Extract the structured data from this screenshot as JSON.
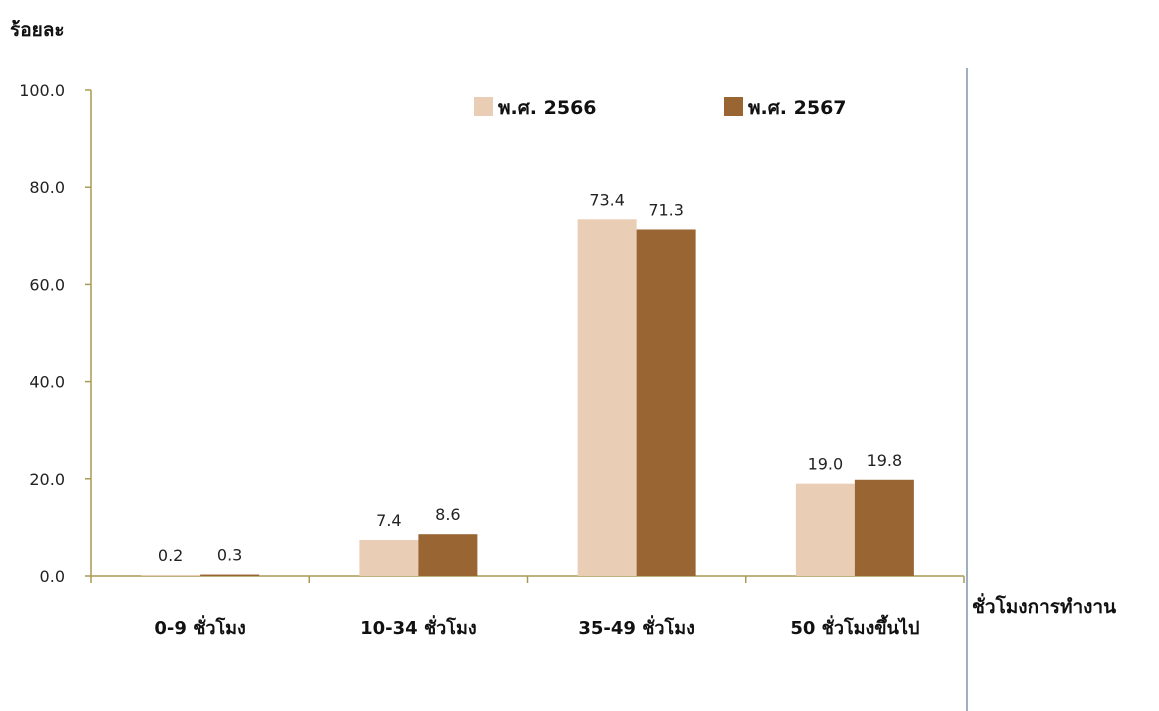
{
  "chart_data": {
    "type": "bar",
    "ylabel": "ร้อยละ",
    "xlabel": "ชั่วโมงการทำงาน",
    "categories": [
      "0-9 ชั่วโมง",
      "10-34 ชั่วโมง",
      "35-49 ชั่วโมง",
      "50 ชั่วโมงขึ้นไป"
    ],
    "series": [
      {
        "name": "พ.ศ. 2566",
        "values": [
          0.2,
          7.4,
          73.4,
          19.0
        ],
        "value_labels": [
          "0.2",
          "7.4",
          "73.4",
          "19.0"
        ],
        "color": "#EACDB5"
      },
      {
        "name": "พ.ศ. 2567",
        "values": [
          0.3,
          8.6,
          71.3,
          19.8
        ],
        "value_labels": [
          "0.3",
          "8.6",
          "71.3",
          "19.8"
        ],
        "color": "#996633"
      }
    ],
    "ylim": [
      0,
      100
    ],
    "yticks": [
      0,
      20,
      40,
      60,
      80,
      100
    ],
    "ytick_labels": [
      "0.0",
      "20.0",
      "40.0",
      "60.0",
      "80.0",
      "100.0"
    ],
    "grid": false,
    "legend_position": "top-center",
    "axis_color": "#A89A55"
  }
}
